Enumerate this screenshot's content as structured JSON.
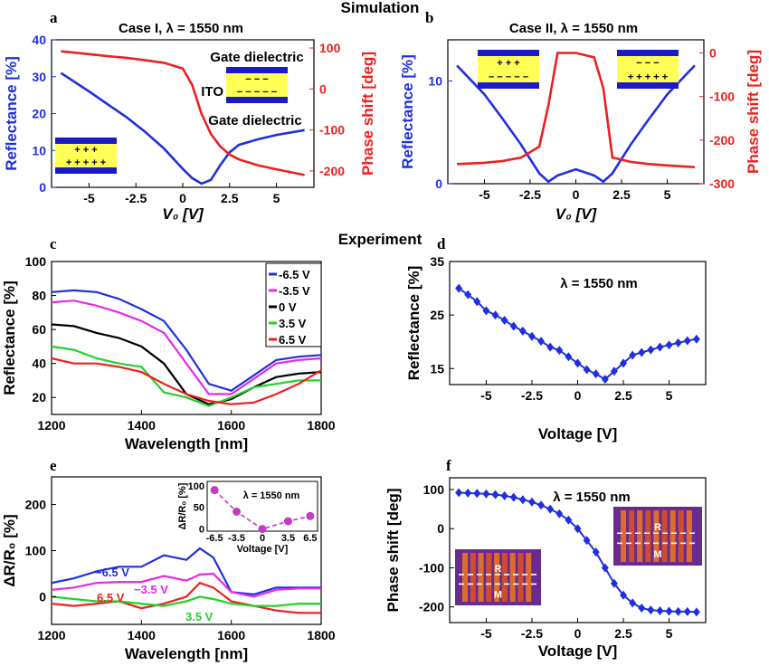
{
  "section_sim": "Simulation",
  "section_exp": "Experiment",
  "colors": {
    "blue": "#1f2fe0",
    "red": "#ee1f1f",
    "black": "#000000",
    "magenta": "#e629e6",
    "green": "#22d22a",
    "yellow": "#ffff55",
    "navy": "#1a1ac8"
  },
  "panels": {
    "a": {
      "letter": "a",
      "title": "Case I,  λ = 1550 nm",
      "xlabel": "V₀ [V]",
      "ylabel_left": "Reflectance [%]",
      "ylabel_right": "Phase shift [deg]",
      "xticks": [
        "-5",
        "-2.5",
        "0",
        "2.5",
        "5"
      ],
      "yticks_left": [
        "0",
        "10",
        "20",
        "30",
        "40"
      ],
      "yticks_right": [
        "-200",
        "-100",
        "0",
        "100"
      ],
      "labels": {
        "top": "Gate dielectric",
        "mid": "ITO",
        "bottom": "Gate dielectric",
        "inset_top_sign": "− − −",
        "inset_bot_sign": "− − − − −",
        "inset2_top": "+ + +",
        "inset2_bot": "+ + + + +"
      }
    },
    "b": {
      "letter": "b",
      "title": "Case II,  λ = 1550 nm",
      "xlabel": "V₀ [V]",
      "ylabel_left": "Reflectance [%]",
      "ylabel_right": "Phase shift [deg]",
      "xticks": [
        "-5",
        "-2.5",
        "0",
        "2.5",
        "5"
      ],
      "yticks_left": [
        "0",
        "10"
      ],
      "yticks_right": [
        "-300",
        "-200",
        "-100",
        "0"
      ],
      "labels": {
        "inset_top": "+ + +",
        "inset_bot": "− − − − −",
        "inset2_top": "− − −",
        "inset2_bot": "+ + + + +"
      }
    },
    "c": {
      "letter": "c",
      "xlabel": "Wavelength [nm]",
      "ylabel": "Reflectance [%]",
      "xticks": [
        "1200",
        "1400",
        "1600",
        "1800"
      ],
      "yticks": [
        "20",
        "40",
        "60",
        "80",
        "100"
      ],
      "legend": [
        "-6.5 V",
        "-3.5 V",
        "0 V",
        "3.5 V",
        "6.5 V"
      ]
    },
    "d": {
      "letter": "d",
      "title": "λ = 1550 nm",
      "xlabel": "Voltage [V]",
      "ylabel": "Reflectance [%]",
      "xticks": [
        "-5",
        "-2.5",
        "0",
        "2.5",
        "5"
      ],
      "yticks": [
        "15",
        "25",
        "35"
      ]
    },
    "e": {
      "letter": "e",
      "xlabel": "Wavelength [nm]",
      "ylabel": "ΔR/R₀ [%]",
      "xticks": [
        "1200",
        "1400",
        "1600",
        "1800"
      ],
      "yticks": [
        "0",
        "100",
        "200"
      ],
      "curve_labels": [
        "−6.5 V",
        "−3.5 V",
        "6.5 V",
        "3.5 V"
      ],
      "inset": {
        "title": "λ = 1550 nm",
        "xlabel": "Voltage [V]",
        "ylabel": "ΔR/R₀ [%]",
        "xticks": [
          "-6.5",
          "-3.5",
          "0",
          "3.5",
          "6.5"
        ],
        "yticks": [
          "0",
          "50",
          "100"
        ]
      }
    },
    "f": {
      "letter": "f",
      "title": "λ = 1550 nm",
      "xlabel": "Voltage [V]",
      "ylabel": "Phase shift [deg]",
      "xticks": [
        "-5",
        "-2.5",
        "0",
        "2.5",
        "5"
      ],
      "yticks": [
        "-200",
        "-100",
        "0",
        "100"
      ],
      "img_labels": {
        "r": "R",
        "m": "M"
      }
    }
  },
  "chart_data": [
    {
      "type": "line",
      "panel": "a",
      "x": [
        -6.5,
        -5,
        -4,
        -3,
        -2,
        -1,
        0,
        0.5,
        1,
        1.5,
        2,
        2.5,
        3,
        4,
        5,
        6.5
      ],
      "series": [
        {
          "name": "Reflectance",
          "axis": "left",
          "values": [
            31,
            26,
            22.5,
            19,
            15,
            10.5,
            5,
            2.5,
            1,
            2,
            6,
            9.5,
            11.5,
            13,
            14.2,
            15.5
          ]
        },
        {
          "name": "Phase shift",
          "axis": "right",
          "values": [
            92,
            85,
            80,
            76,
            70,
            64,
            50,
            10,
            -60,
            -110,
            -140,
            -160,
            -172,
            -186,
            -196,
            -210
          ]
        }
      ],
      "xlim": [
        -7,
        7
      ],
      "ylim_left": [
        0,
        40
      ],
      "ylim_right": [
        -240,
        120
      ]
    },
    {
      "type": "line",
      "panel": "b",
      "x": [
        -6.5,
        -5,
        -4,
        -3,
        -2,
        -1.5,
        -1,
        0,
        1,
        1.5,
        2,
        3,
        4,
        5,
        6.5
      ],
      "series": [
        {
          "name": "Reflectance",
          "axis": "left",
          "values": [
            11.5,
            8.7,
            6.3,
            3.8,
            1,
            0.2,
            0.8,
            1.4,
            0.8,
            0.2,
            1,
            3.8,
            6.3,
            8.7,
            11.5
          ]
        },
        {
          "name": "Phase shift",
          "axis": "right",
          "values": [
            -255,
            -252,
            -248,
            -240,
            -215,
            -120,
            0,
            0,
            -10,
            -80,
            -240,
            -250,
            -255,
            -258,
            -262
          ]
        }
      ],
      "xlim": [
        -7,
        7
      ],
      "ylim_left": [
        0,
        14
      ],
      "ylim_right": [
        -300,
        30
      ]
    },
    {
      "type": "line",
      "panel": "c",
      "x": [
        1200,
        1250,
        1300,
        1350,
        1400,
        1450,
        1500,
        1550,
        1600,
        1650,
        1700,
        1750,
        1800
      ],
      "series": [
        {
          "name": "-6.5 V",
          "values": [
            82,
            83,
            82,
            78,
            72,
            65,
            48,
            28,
            24,
            33,
            42,
            44,
            45
          ]
        },
        {
          "name": "-3.5 V",
          "values": [
            76,
            77,
            74,
            70,
            65,
            58,
            40,
            22,
            22,
            31,
            40,
            42,
            43
          ]
        },
        {
          "name": "0 V",
          "values": [
            63,
            62,
            58,
            55,
            50,
            40,
            22,
            16,
            19,
            26,
            32,
            34,
            35
          ]
        },
        {
          "name": "3.5 V",
          "values": [
            50,
            48,
            43,
            40,
            38,
            23,
            20,
            15,
            20,
            26,
            28,
            30,
            30
          ]
        },
        {
          "name": "6.5 V",
          "values": [
            43,
            40,
            40,
            38,
            35,
            28,
            22,
            18,
            16,
            17,
            22,
            28,
            36
          ]
        }
      ],
      "xlim": [
        1200,
        1800
      ],
      "ylim": [
        10,
        100
      ]
    },
    {
      "type": "line",
      "panel": "d",
      "x": [
        -6.5,
        -6,
        -5.5,
        -5,
        -4.5,
        -4,
        -3.5,
        -3,
        -2.5,
        -2,
        -1.5,
        -1,
        -0.5,
        0,
        0.5,
        1,
        1.5,
        2,
        2.5,
        3,
        3.5,
        4,
        4.5,
        5,
        5.5,
        6,
        6.5
      ],
      "values": [
        30,
        28.8,
        27.5,
        25.8,
        25,
        24,
        22.9,
        22,
        21,
        20.1,
        19,
        18.4,
        17.2,
        16,
        14.8,
        14,
        13,
        14.5,
        16,
        17.5,
        18,
        18.5,
        19,
        19.4,
        19.8,
        20.2,
        20.5
      ],
      "xlim": [
        -7,
        7
      ],
      "ylim": [
        12,
        35
      ]
    },
    {
      "type": "line",
      "panel": "e",
      "x": [
        1200,
        1250,
        1300,
        1350,
        1400,
        1450,
        1500,
        1530,
        1560,
        1600,
        1650,
        1700,
        1750,
        1800
      ],
      "series": [
        {
          "name": "-6.5 V",
          "values": [
            30,
            40,
            55,
            65,
            65,
            90,
            80,
            105,
            85,
            10,
            5,
            20,
            20,
            20
          ]
        },
        {
          "name": "-3.5 V",
          "values": [
            15,
            20,
            30,
            32,
            32,
            45,
            35,
            48,
            50,
            10,
            0,
            15,
            18,
            18
          ]
        },
        {
          "name": "6.5 V",
          "values": [
            -15,
            -20,
            -15,
            -10,
            -25,
            -15,
            0,
            30,
            20,
            -10,
            -20,
            -30,
            -35,
            -35
          ]
        },
        {
          "name": "3.5 V",
          "values": [
            0,
            -5,
            -10,
            -10,
            -15,
            -20,
            -10,
            0,
            -5,
            -15,
            -20,
            -20,
            -15,
            -15
          ]
        }
      ],
      "xlim": [
        1200,
        1800
      ],
      "ylim": [
        -60,
        260
      ]
    },
    {
      "type": "scatter",
      "panel": "e-inset",
      "x": [
        -6.5,
        -3.5,
        0,
        3.5,
        6.5
      ],
      "values": [
        90,
        40,
        0,
        18,
        30
      ],
      "xlim": [
        -7.5,
        7.5
      ],
      "ylim": [
        -5,
        110
      ]
    },
    {
      "type": "line",
      "panel": "f",
      "x": [
        -6.5,
        -6,
        -5.5,
        -5,
        -4.5,
        -4,
        -3.5,
        -3,
        -2.5,
        -2,
        -1.5,
        -1,
        -0.5,
        0,
        0.5,
        1,
        1.5,
        2,
        2.5,
        3,
        3.5,
        4,
        4.5,
        5,
        5.5,
        6,
        6.5
      ],
      "values": [
        92,
        91,
        90,
        89,
        87,
        84,
        80,
        74,
        68,
        60,
        50,
        38,
        22,
        0,
        -30,
        -60,
        -100,
        -140,
        -170,
        -190,
        -203,
        -208,
        -210,
        -211,
        -212,
        -212,
        -213
      ],
      "xlim": [
        -7,
        7
      ],
      "ylim": [
        -240,
        130
      ]
    }
  ]
}
